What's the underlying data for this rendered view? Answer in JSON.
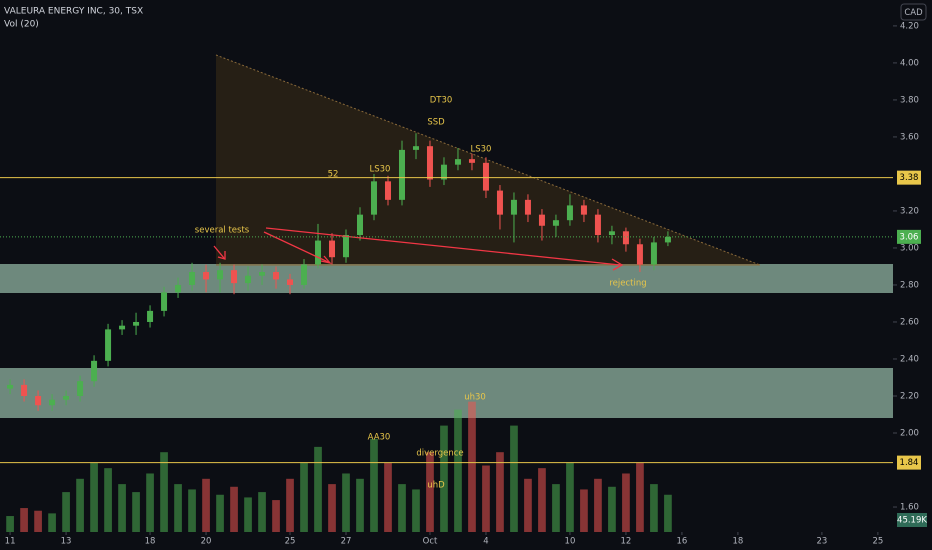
{
  "chart_data": {
    "type": "candlestick",
    "title": "VALEURA ENERGY INC, 30, TSX",
    "subtitle": "Vol (20)",
    "currency": "CAD",
    "up_color": "#4caf50",
    "down_color": "#ef5350",
    "x": [
      0,
      0.5,
      1,
      1.5,
      2,
      2.5,
      3,
      3.5,
      4,
      4.5,
      5,
      5.5,
      6,
      6.5,
      7,
      7.5,
      8,
      8.5,
      9,
      9.5,
      10,
      10.5,
      11,
      11.5,
      12,
      12.5,
      13,
      13.5,
      14,
      14.5,
      15,
      15.5,
      16,
      16.5,
      17,
      17.5,
      18,
      18.5,
      19,
      19.5,
      20,
      20.5,
      21,
      21.5,
      22,
      22.5,
      23,
      23.5
    ],
    "open": [
      2.24,
      2.26,
      2.2,
      2.15,
      2.18,
      2.2,
      2.28,
      2.39,
      2.56,
      2.58,
      2.6,
      2.66,
      2.76,
      2.8,
      2.87,
      2.83,
      2.88,
      2.81,
      2.85,
      2.87,
      2.83,
      2.8,
      2.91,
      3.04,
      2.95,
      3.07,
      3.18,
      3.36,
      3.26,
      3.53,
      3.55,
      3.37,
      3.45,
      3.48,
      3.46,
      3.31,
      3.18,
      3.26,
      3.18,
      3.12,
      3.15,
      3.23,
      3.18,
      3.07,
      3.09,
      3.02,
      2.91,
      3.03
    ],
    "high": [
      2.29,
      2.29,
      2.23,
      2.21,
      2.23,
      2.31,
      2.42,
      2.59,
      2.61,
      2.65,
      2.69,
      2.79,
      2.84,
      2.92,
      2.91,
      2.92,
      2.91,
      2.9,
      2.91,
      2.9,
      2.86,
      2.94,
      3.13,
      3.08,
      3.1,
      3.22,
      3.4,
      3.39,
      3.58,
      3.62,
      3.58,
      3.49,
      3.54,
      3.51,
      3.49,
      3.34,
      3.3,
      3.29,
      3.21,
      3.18,
      3.29,
      3.26,
      3.21,
      3.12,
      3.11,
      3.05,
      3.06,
      3.09
    ],
    "low": [
      2.21,
      2.17,
      2.12,
      2.12,
      2.15,
      2.17,
      2.25,
      2.36,
      2.53,
      2.53,
      2.57,
      2.63,
      2.73,
      2.77,
      2.76,
      2.76,
      2.75,
      2.77,
      2.8,
      2.78,
      2.75,
      2.78,
      2.89,
      2.91,
      2.92,
      3.04,
      3.15,
      3.23,
      3.23,
      3.48,
      3.33,
      3.34,
      3.42,
      3.42,
      3.27,
      3.1,
      3.03,
      3.14,
      3.04,
      3.06,
      3.12,
      3.14,
      3.03,
      3.02,
      2.98,
      2.87,
      2.88,
      3.01
    ],
    "close": [
      2.26,
      2.2,
      2.15,
      2.18,
      2.2,
      2.28,
      2.39,
      2.56,
      2.58,
      2.6,
      2.66,
      2.76,
      2.8,
      2.87,
      2.83,
      2.88,
      2.81,
      2.85,
      2.87,
      2.83,
      2.8,
      2.91,
      3.04,
      2.95,
      3.07,
      3.18,
      3.36,
      3.26,
      3.53,
      3.55,
      3.37,
      3.45,
      3.48,
      3.46,
      3.31,
      3.18,
      3.26,
      3.18,
      3.12,
      3.15,
      3.23,
      3.18,
      3.07,
      3.09,
      3.02,
      2.91,
      3.03,
      3.06
    ],
    "volume": [
      60,
      90,
      80,
      70,
      150,
      200,
      260,
      240,
      180,
      150,
      220,
      300,
      180,
      160,
      200,
      140,
      170,
      130,
      150,
      120,
      200,
      260,
      320,
      180,
      220,
      200,
      350,
      260,
      180,
      160,
      300,
      400,
      460,
      490,
      250,
      300,
      400,
      200,
      240,
      180,
      260,
      160,
      200,
      170,
      220,
      260,
      180,
      140
    ],
    "volume_ylim": [
      0,
      2000
    ],
    "volume_label": "45.19K",
    "xlim": [
      -0.36,
      31.54
    ],
    "xticks": [
      {
        "value": 0,
        "label": "11"
      },
      {
        "value": 2,
        "label": "13"
      },
      {
        "value": 5,
        "label": "18"
      },
      {
        "value": 7,
        "label": "20"
      },
      {
        "value": 10,
        "label": "25"
      },
      {
        "value": 12,
        "label": "27"
      },
      {
        "value": 15,
        "label": "Oct"
      },
      {
        "value": 17,
        "label": "4"
      },
      {
        "value": 20,
        "label": "10"
      },
      {
        "value": 22,
        "label": "12"
      },
      {
        "value": 24,
        "label": "16"
      },
      {
        "value": 26,
        "label": "18"
      },
      {
        "value": 29,
        "label": "23"
      },
      {
        "value": 31,
        "label": "25"
      }
    ],
    "ylim": [
      1.465,
      4.34
    ],
    "yticks": [
      {
        "value": 4.2,
        "label": "4.20"
      },
      {
        "value": 4.0,
        "label": "4.00"
      },
      {
        "value": 3.8,
        "label": "3.80"
      },
      {
        "value": 3.6,
        "label": "3.60"
      },
      {
        "value": 3.2,
        "label": "3.20"
      },
      {
        "value": 3.0,
        "label": "3.00"
      },
      {
        "value": 2.8,
        "label": "2.80"
      },
      {
        "value": 2.6,
        "label": "2.60"
      },
      {
        "value": 2.4,
        "label": "2.40"
      },
      {
        "value": 2.2,
        "label": "2.20"
      },
      {
        "value": 2.0,
        "label": "2.00"
      },
      {
        "value": 1.6,
        "label": "1.60"
      }
    ],
    "levels": [
      3.38,
      1.84
    ],
    "level_color": "#e8c64a",
    "last_price": 3.06,
    "annotations": [
      "DT30",
      "SSD",
      "LS30",
      "52",
      "LS30",
      "several tests",
      "rejecting",
      "uh30",
      "AA30",
      "divergence",
      "uhD"
    ]
  }
}
